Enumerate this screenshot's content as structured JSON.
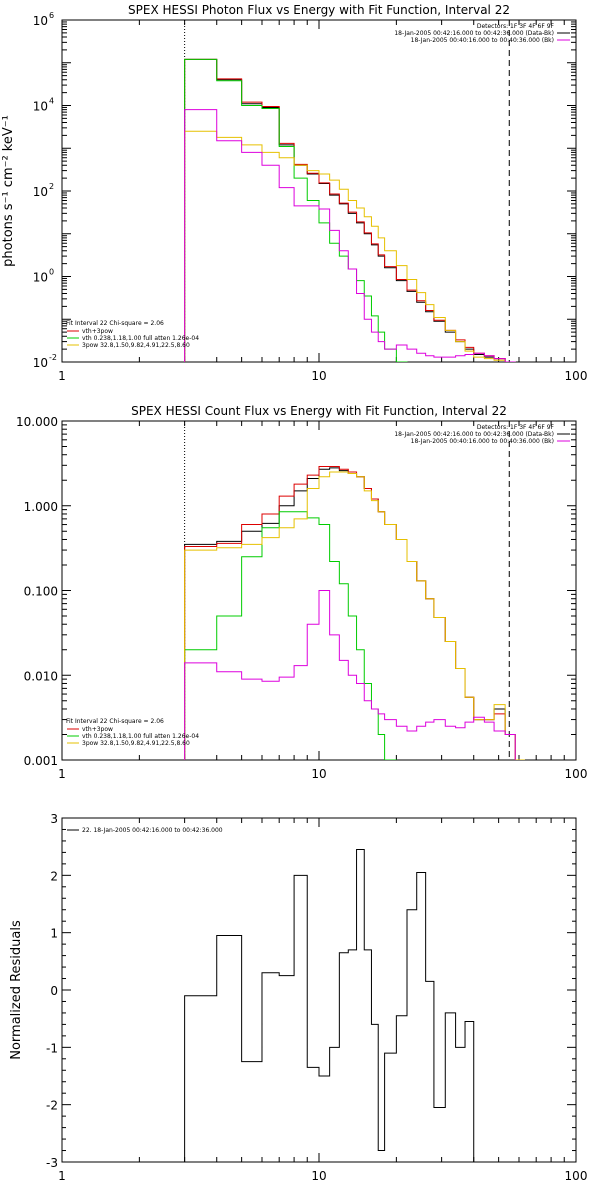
{
  "chart_data": [
    {
      "type": "line",
      "title": "SPEX HESSI Photon Flux vs Energy with Fit Function, Interval 22",
      "ylabel": "photons s⁻¹ cm⁻² keV⁻¹",
      "xlabel": "",
      "xscale": "log",
      "yscale": "log",
      "xlim": [
        1,
        100
      ],
      "ylim": [
        0.01,
        1000000
      ],
      "xticks": [
        "1",
        "10",
        "100"
      ],
      "yticks": [
        {
          "value": 1000000,
          "label": "10",
          "exp": "6"
        },
        {
          "value": 10000,
          "label": "10",
          "exp": "4"
        },
        {
          "value": 100,
          "label": "10",
          "exp": "2"
        },
        {
          "value": 1,
          "label": "10",
          "exp": "0"
        },
        {
          "value": 0.01,
          "label": "10",
          "exp": "-2"
        }
      ],
      "vlines": [
        {
          "x": 3,
          "style": "dotted"
        },
        {
          "x": 55,
          "style": "dashed"
        }
      ],
      "legend_right": {
        "position": "top-right",
        "lines": [
          {
            "text": "Detectors: 1F 3F 4F 6F 9F",
            "color": ""
          },
          {
            "text": "18-Jan-2005 00:42:16.000 to 00:42:36.000 (Data-Bk)",
            "color": "#000000"
          },
          {
            "text": "18-Jan-2005 00:40:16.000 to 00:40:36.000 (Bk)",
            "color": "#dd00dd"
          }
        ]
      },
      "legend_left": {
        "position": "bottom-left",
        "header": "Fit Interval 22   Chi-square = 2.06",
        "lines": [
          {
            "text": "vth+3pow",
            "color": "#dd0000"
          },
          {
            "text": "vth 0.238,1.18,1.00  full atten 1.26e-04",
            "color": "#00cc00"
          },
          {
            "text": "3pow 32.8,1.50,9.82,4.91,22.5,8.60",
            "color": "#e6c000"
          }
        ]
      },
      "bin_edges": [
        3,
        4,
        5,
        6,
        7,
        8,
        9,
        10,
        11,
        12,
        13,
        14,
        15,
        16,
        17,
        18,
        20,
        22,
        24,
        26,
        28,
        31,
        34,
        37,
        40,
        44,
        48,
        53,
        58,
        63
      ],
      "series": [
        {
          "name": "",
          "color": "#000000",
          "values": [
            120000,
            40000,
            11000,
            9000,
            1200,
            400,
            250,
            150,
            80,
            50,
            30,
            18,
            10,
            5.5,
            3,
            1.6,
            0.8,
            0.45,
            0.25,
            0.15,
            0.09,
            0.05,
            0.03,
            0.02,
            0.015,
            0.013,
            0.012,
            null,
            null
          ]
        },
        {
          "name": "",
          "color": "#dd0000",
          "values": [
            120000,
            42000,
            12000,
            9500,
            1300,
            420,
            260,
            155,
            85,
            52,
            32,
            19,
            10.5,
            5.8,
            3.2,
            1.7,
            0.85,
            0.48,
            0.27,
            0.16,
            0.095,
            0.055,
            0.033,
            0.022,
            0.016,
            0.014,
            0.012,
            null,
            null
          ]
        },
        {
          "name": "",
          "color": "#00cc00",
          "values": [
            120000,
            38000,
            10000,
            8500,
            1100,
            200,
            60,
            18,
            6,
            3,
            1.5,
            0.8,
            0.35,
            0.12,
            0.05,
            0.02,
            0.01,
            null,
            null,
            null,
            null,
            null,
            null,
            null,
            null,
            null,
            null,
            null,
            null
          ]
        },
        {
          "name": "",
          "color": "#e6c000",
          "values": [
            2500,
            1800,
            1200,
            800,
            600,
            400,
            300,
            250,
            180,
            110,
            60,
            40,
            25,
            15,
            8,
            4,
            1.8,
            0.85,
            0.42,
            0.22,
            0.11,
            0.055,
            0.03,
            0.018,
            0.013,
            0.012,
            0.011,
            0.01,
            null
          ]
        },
        {
          "name": "",
          "color": "#dd00dd",
          "values": [
            8000,
            1500,
            800,
            400,
            120,
            45,
            45,
            38,
            12,
            4,
            1.5,
            0.4,
            0.1,
            0.05,
            0.03,
            0.02,
            0.025,
            0.02,
            0.016,
            0.014,
            0.013,
            0.013,
            0.014,
            0.015,
            0.016,
            0.014,
            0.012,
            0.01,
            null
          ]
        }
      ]
    },
    {
      "type": "line",
      "title": "SPEX HESSI Count Flux vs Energy with Fit Function, Interval 22",
      "ylabel": "",
      "xlabel": "",
      "xscale": "log",
      "yscale": "log",
      "xlim": [
        1,
        100
      ],
      "ylim": [
        0.001,
        10
      ],
      "xticks": [
        "1",
        "10",
        "100"
      ],
      "yticks": [
        {
          "value": 10,
          "label": "10.000",
          "exp": ""
        },
        {
          "value": 1,
          "label": "1.000",
          "exp": ""
        },
        {
          "value": 0.1,
          "label": "0.100",
          "exp": ""
        },
        {
          "value": 0.01,
          "label": "0.010",
          "exp": ""
        },
        {
          "value": 0.001,
          "label": "0.001",
          "exp": ""
        }
      ],
      "vlines": [
        {
          "x": 3,
          "style": "dotted"
        },
        {
          "x": 55,
          "style": "dashed"
        }
      ],
      "legend_right": {
        "position": "top-right",
        "lines": [
          {
            "text": "Detectors: 1F 3F 4F 6F 9F",
            "color": ""
          },
          {
            "text": "18-Jan-2005 00:42:16.000 to 00:42:36.000 (Data-Bk)",
            "color": "#000000"
          },
          {
            "text": "18-Jan-2005 00:40:16.000 to 00:40:36.000 (Bk)",
            "color": "#dd00dd"
          }
        ]
      },
      "legend_left": {
        "position": "bottom-left",
        "header": "Fit Interval 22   Chi-square = 2.06",
        "lines": [
          {
            "text": "vth+3pow",
            "color": "#dd0000"
          },
          {
            "text": "vth 0.238,1.18,1.00  full atten 1.26e-04",
            "color": "#00cc00"
          },
          {
            "text": "3pow 32.8,1.50,9.82,4.91,22.5,8.60",
            "color": "#e6c000"
          }
        ]
      },
      "bin_edges": [
        3,
        4,
        5,
        6,
        7,
        8,
        9,
        10,
        11,
        12,
        13,
        14,
        15,
        16,
        17,
        18,
        20,
        22,
        24,
        26,
        28,
        31,
        34,
        37,
        40,
        44,
        48,
        53,
        58,
        63
      ],
      "series": [
        {
          "name": "",
          "color": "#000000",
          "values": [
            0.35,
            0.38,
            0.5,
            0.62,
            1.0,
            1.5,
            2.1,
            2.7,
            2.8,
            2.6,
            2.4,
            2.2,
            1.6,
            1.2,
            0.85,
            0.6,
            0.4,
            0.22,
            0.13,
            0.08,
            0.048,
            0.025,
            0.012,
            0.0055,
            0.003,
            0.003,
            0.004,
            0.002,
            null
          ]
        },
        {
          "name": "",
          "color": "#dd0000",
          "values": [
            0.33,
            0.36,
            0.6,
            0.8,
            1.3,
            1.8,
            2.3,
            2.9,
            2.9,
            2.7,
            2.5,
            2.2,
            1.6,
            1.2,
            0.85,
            0.6,
            0.4,
            0.22,
            0.13,
            0.08,
            0.048,
            0.025,
            0.012,
            0.0055,
            0.003,
            0.003,
            0.0035,
            0.002,
            null
          ]
        },
        {
          "name": "",
          "color": "#00cc00",
          "values": [
            0.02,
            0.05,
            0.25,
            0.55,
            0.85,
            0.85,
            0.72,
            0.6,
            0.22,
            0.12,
            0.05,
            0.02,
            0.008,
            0.004,
            0.002,
            0.001,
            null,
            null,
            null,
            null,
            null,
            null,
            null,
            null,
            null,
            null,
            null,
            null,
            null
          ]
        },
        {
          "name": "",
          "color": "#e6c000",
          "values": [
            0.3,
            0.32,
            0.35,
            0.42,
            0.55,
            0.7,
            1.6,
            2.2,
            2.5,
            2.5,
            2.4,
            2.2,
            1.5,
            1.15,
            0.85,
            0.6,
            0.4,
            0.22,
            0.13,
            0.08,
            0.048,
            0.025,
            0.012,
            0.0055,
            0.003,
            0.003,
            0.0045,
            0.002,
            0.001
          ]
        },
        {
          "name": "",
          "color": "#dd00dd",
          "values": [
            0.014,
            0.011,
            0.009,
            0.0085,
            0.0095,
            0.013,
            0.04,
            0.1,
            0.03,
            0.015,
            0.01,
            0.008,
            0.005,
            0.004,
            0.0035,
            0.003,
            0.0025,
            0.0022,
            0.0025,
            0.0028,
            0.003,
            0.0025,
            0.0024,
            0.0028,
            0.0032,
            0.0028,
            0.0022,
            0.002,
            null
          ]
        }
      ]
    },
    {
      "type": "line",
      "title": "",
      "ylabel": "Normalized Residuals",
      "xlabel": "",
      "xscale": "log",
      "yscale": "linear",
      "xlim": [
        1,
        100
      ],
      "ylim": [
        -3,
        3
      ],
      "xticks": [
        "1",
        "10",
        "100"
      ],
      "yticks": [
        {
          "value": 3,
          "label": "3",
          "exp": ""
        },
        {
          "value": 2,
          "label": "2",
          "exp": ""
        },
        {
          "value": 1,
          "label": "1",
          "exp": ""
        },
        {
          "value": 0,
          "label": "0",
          "exp": ""
        },
        {
          "value": -1,
          "label": "-1",
          "exp": ""
        },
        {
          "value": -2,
          "label": "-2",
          "exp": ""
        },
        {
          "value": -3,
          "label": "-3",
          "exp": ""
        }
      ],
      "vlines": [],
      "legend_right": null,
      "legend_left": {
        "position": "top-left",
        "header": "",
        "lines": [
          {
            "text": "22. 18-Jan-2005 00:42:16.000 to 00:42:36.000",
            "color": "#000000"
          }
        ]
      },
      "bin_edges": [
        3,
        4,
        5,
        6,
        7,
        8,
        9,
        10,
        11,
        12,
        13,
        14,
        15,
        16,
        17,
        18,
        20,
        22,
        24,
        26,
        28,
        31,
        34,
        37,
        40,
        44,
        48,
        53,
        58
      ],
      "series": [
        {
          "name": "",
          "color": "#000000",
          "values": [
            -0.1,
            0.95,
            -1.25,
            0.3,
            0.25,
            2.0,
            -1.35,
            -1.5,
            -1.0,
            0.65,
            0.7,
            2.45,
            0.7,
            -0.6,
            -2.8,
            -1.1,
            -0.45,
            1.4,
            2.05,
            0.15,
            -2.05,
            -0.4,
            -1.0,
            -0.55
          ]
        }
      ]
    }
  ]
}
